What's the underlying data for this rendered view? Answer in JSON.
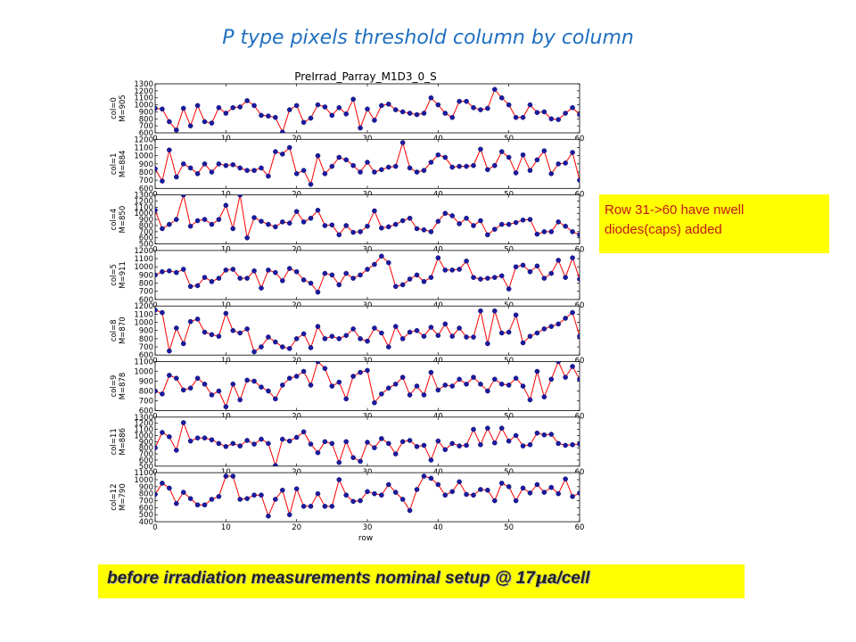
{
  "slide": {
    "title": "P type pixels threshold column by column",
    "note": "Row 31->60 have nwell diodes(caps) added",
    "caption_pre": "before irradiation measurements nominal setup @ 17",
    "caption_mu": "µ",
    "caption_post": "a/cell"
  },
  "chart_data": {
    "type": "line",
    "title": "PreIrrad_Parray_M1D3_0_S",
    "xlabel": "row",
    "xlim": [
      0,
      60
    ],
    "xticks": [
      0,
      10,
      20,
      30,
      40,
      50,
      60
    ],
    "line_color": "#ff0000",
    "marker_color": "#1a1aa0",
    "panels": [
      {
        "ylabel": [
          "col=0",
          "M=905"
        ],
        "ylim": [
          600,
          1300
        ],
        "yticks": [
          600,
          700,
          800,
          900,
          1000,
          1100,
          1200,
          1300
        ],
        "values": [
          950,
          940,
          760,
          640,
          950,
          700,
          990,
          760,
          740,
          960,
          880,
          960,
          970,
          1060,
          990,
          850,
          840,
          820,
          610,
          930,
          990,
          750,
          810,
          1000,
          970,
          850,
          960,
          870,
          1080,
          670,
          940,
          780,
          990,
          1010,
          930,
          900,
          880,
          860,
          880,
          1100,
          1000,
          880,
          820,
          1050,
          1050,
          960,
          930,
          950,
          1220,
          1100,
          1000,
          820,
          820,
          1000,
          890,
          900,
          800,
          790,
          880,
          960,
          860
        ]
      },
      {
        "ylabel": [
          "col=1",
          "M=884"
        ],
        "ylim": [
          600,
          1200
        ],
        "yticks": [
          600,
          700,
          800,
          900,
          1000,
          1100,
          1200
        ],
        "values": [
          840,
          690,
          1070,
          740,
          900,
          850,
          780,
          900,
          800,
          900,
          880,
          890,
          850,
          820,
          820,
          850,
          750,
          1050,
          1020,
          1100,
          780,
          820,
          650,
          1000,
          780,
          870,
          980,
          950,
          880,
          800,
          920,
          800,
          830,
          860,
          870,
          1160,
          850,
          800,
          820,
          920,
          1010,
          980,
          860,
          870,
          870,
          880,
          1080,
          830,
          880,
          1050,
          980,
          790,
          1010,
          820,
          950,
          1060,
          780,
          900,
          910,
          1040,
          700
        ]
      },
      {
        "ylabel": [
          "col=4",
          "M=850"
        ],
        "ylim": [
          500,
          1300
        ],
        "yticks": [
          500,
          600,
          700,
          800,
          900,
          1000,
          1100,
          1200,
          1300
        ],
        "values": [
          1050,
          750,
          820,
          900,
          1300,
          790,
          880,
          900,
          820,
          900,
          1130,
          750,
          1300,
          600,
          930,
          870,
          820,
          780,
          860,
          840,
          1030,
          860,
          920,
          1050,
          800,
          810,
          650,
          800,
          690,
          700,
          790,
          1040,
          760,
          780,
          820,
          880,
          920,
          750,
          730,
          700,
          870,
          1000,
          960,
          830,
          920,
          800,
          880,
          650,
          740,
          820,
          820,
          850,
          890,
          900,
          660,
          700,
          700,
          860,
          790,
          700,
          650
        ]
      },
      {
        "ylabel": [
          "col=5",
          "M=911"
        ],
        "ylim": [
          600,
          1200
        ],
        "yticks": [
          600,
          700,
          800,
          900,
          1000,
          1100,
          1200
        ],
        "values": [
          900,
          940,
          950,
          930,
          970,
          760,
          770,
          870,
          820,
          860,
          960,
          970,
          860,
          860,
          950,
          740,
          960,
          930,
          830,
          980,
          940,
          840,
          800,
          690,
          920,
          900,
          780,
          920,
          860,
          900,
          970,
          1030,
          1130,
          1050,
          760,
          780,
          850,
          900,
          820,
          870,
          1110,
          960,
          960,
          970,
          1070,
          870,
          850,
          860,
          870,
          890,
          730,
          1000,
          1020,
          940,
          1010,
          860,
          920,
          1080,
          870,
          1110,
          850
        ]
      },
      {
        "ylabel": [
          "col=8",
          "M=870"
        ],
        "ylim": [
          600,
          1200
        ],
        "yticks": [
          600,
          700,
          800,
          900,
          1000,
          1100,
          1200
        ],
        "values": [
          1150,
          1120,
          650,
          930,
          740,
          1010,
          1040,
          880,
          850,
          830,
          1110,
          900,
          870,
          920,
          640,
          700,
          820,
          760,
          700,
          680,
          800,
          860,
          690,
          950,
          800,
          830,
          800,
          840,
          920,
          800,
          770,
          930,
          870,
          700,
          950,
          800,
          880,
          900,
          830,
          940,
          840,
          980,
          830,
          930,
          820,
          820,
          1140,
          740,
          1140,
          870,
          880,
          1090,
          750,
          830,
          870,
          920,
          950,
          980,
          1050,
          1120,
          830
        ]
      },
      {
        "ylabel": [
          "col=9",
          "M=878"
        ],
        "ylim": [
          600,
          1100
        ],
        "yticks": [
          600,
          700,
          800,
          900,
          1000,
          1100
        ],
        "values": [
          800,
          770,
          960,
          930,
          810,
          830,
          930,
          870,
          760,
          800,
          640,
          870,
          710,
          910,
          900,
          840,
          800,
          720,
          860,
          930,
          950,
          1000,
          860,
          1100,
          1030,
          850,
          890,
          720,
          950,
          990,
          1010,
          680,
          770,
          830,
          870,
          940,
          760,
          850,
          760,
          990,
          810,
          860,
          850,
          920,
          870,
          940,
          870,
          800,
          920,
          870,
          860,
          930,
          850,
          710,
          1000,
          740,
          920,
          1100,
          940,
          1050,
          920
        ]
      },
      {
        "ylabel": [
          "col=11",
          "M=886"
        ],
        "ylim": [
          500,
          1300
        ],
        "yticks": [
          500,
          600,
          700,
          800,
          900,
          1000,
          1100,
          1200,
          1300
        ],
        "values": [
          800,
          1050,
          980,
          760,
          1210,
          910,
          960,
          960,
          930,
          870,
          820,
          870,
          830,
          920,
          860,
          940,
          870,
          510,
          940,
          910,
          970,
          1060,
          860,
          720,
          900,
          870,
          560,
          900,
          640,
          580,
          890,
          800,
          950,
          870,
          700,
          900,
          920,
          820,
          840,
          600,
          910,
          770,
          870,
          830,
          840,
          1100,
          850,
          1120,
          880,
          1120,
          910,
          1000,
          830,
          850,
          1040,
          1010,
          1020,
          870,
          840,
          850,
          860
        ]
      },
      {
        "ylabel": [
          "col=12",
          "M=790"
        ],
        "ylim": [
          400,
          1100
        ],
        "yticks": [
          400,
          500,
          600,
          700,
          800,
          900,
          1000,
          1100
        ],
        "values": [
          790,
          950,
          880,
          660,
          820,
          730,
          640,
          640,
          720,
          760,
          1050,
          1050,
          720,
          730,
          780,
          780,
          480,
          720,
          850,
          500,
          870,
          620,
          620,
          800,
          620,
          620,
          1000,
          780,
          690,
          700,
          830,
          800,
          780,
          930,
          820,
          720,
          560,
          860,
          1050,
          1020,
          930,
          780,
          830,
          970,
          790,
          780,
          860,
          850,
          700,
          950,
          900,
          700,
          880,
          810,
          930,
          820,
          890,
          800,
          1010,
          760,
          810
        ]
      }
    ]
  }
}
